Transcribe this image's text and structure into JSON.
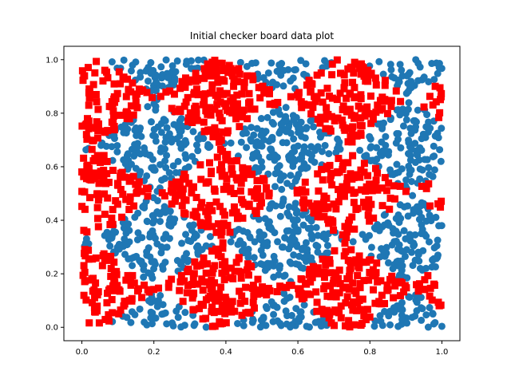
{
  "chart_data": {
    "type": "scatter",
    "title": "Initial checker board data plot",
    "xlabel": "",
    "ylabel": "",
    "xlim": [
      -0.05,
      1.05
    ],
    "ylim": [
      -0.05,
      1.05
    ],
    "grid": false,
    "xticks": [
      "0.0",
      "0.2",
      "0.4",
      "0.6",
      "0.8",
      "1.0"
    ],
    "yticks": [
      "0.0",
      "0.2",
      "0.4",
      "0.6",
      "0.8",
      "1.0"
    ],
    "xtick_values": [
      0.0,
      0.2,
      0.4,
      0.6,
      0.8,
      1.0
    ],
    "ytick_values": [
      0.0,
      0.2,
      0.4,
      0.6,
      0.8,
      1.0
    ],
    "series": [
      {
        "marker": "circle",
        "color": "#1f77b4"
      },
      {
        "marker": "square",
        "color": "#ff0000"
      }
    ],
    "rule": "checkerboard: class = (floor((x+y)/0.35355) + floor((x-y+1)/0.35355)) mod 2",
    "point_count": 2200
  }
}
